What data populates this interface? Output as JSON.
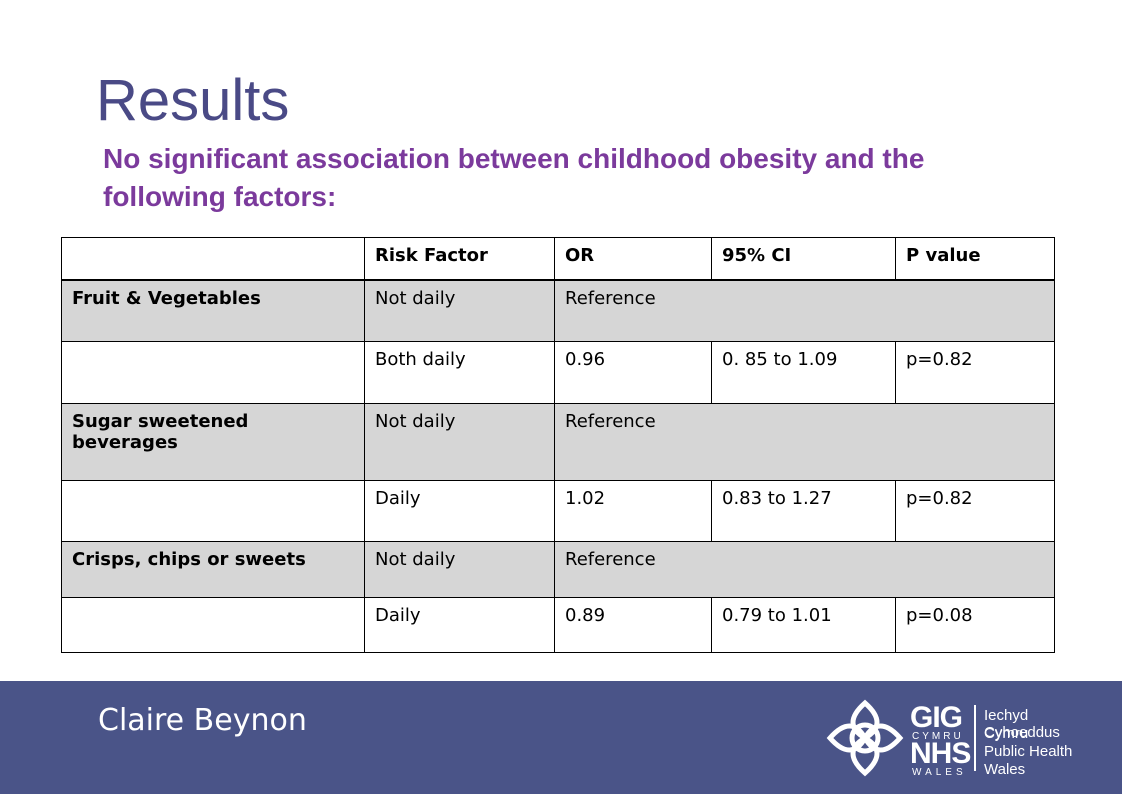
{
  "slide": {
    "title": "Results",
    "subtitle": "No significant association between childhood obesity and the following factors:"
  },
  "table": {
    "headers": [
      "",
      "Risk Factor",
      "OR",
      "95% CI",
      "P value"
    ],
    "rows": [
      {
        "factor": "Fruit & Vegetables",
        "level": "Not daily",
        "or": "Reference",
        "ci": "",
        "p": "",
        "shaded": true
      },
      {
        "factor": "",
        "level": "Both daily",
        "or": "0.96",
        "ci": "0. 85 to 1.09",
        "p": "p=0.82",
        "shaded": false
      },
      {
        "factor": "Sugar sweetened beverages",
        "level": "Not daily",
        "or": "Reference",
        "ci": "",
        "p": "",
        "shaded": true
      },
      {
        "factor": "",
        "level": "Daily",
        "or": "1.02",
        "ci": "0.83 to 1.27",
        "p": "p=0.82",
        "shaded": false
      },
      {
        "factor": "Crisps, chips or sweets",
        "level": "Not daily",
        "or": "Reference",
        "ci": "",
        "p": "",
        "shaded": true
      },
      {
        "factor": "",
        "level": "Daily",
        "or": "0.89",
        "ci": "0.79 to 1.01",
        "p": "p=0.08",
        "shaded": false
      }
    ]
  },
  "footer": {
    "author": "Claire Beynon",
    "logo": {
      "gig": "GIG",
      "cymru": "CYMRU",
      "nhs": "NHS",
      "wales": "WALES",
      "org_welsh_1": "Iechyd Cyhoeddus",
      "org_welsh_2": "Cymru",
      "org_english_1": "Public Health",
      "org_english_2": "Wales"
    },
    "colors": {
      "band": "#4a5488",
      "title": "#4a4a86",
      "subtitle": "#7b3a9c",
      "shade": "#d6d6d6"
    }
  }
}
